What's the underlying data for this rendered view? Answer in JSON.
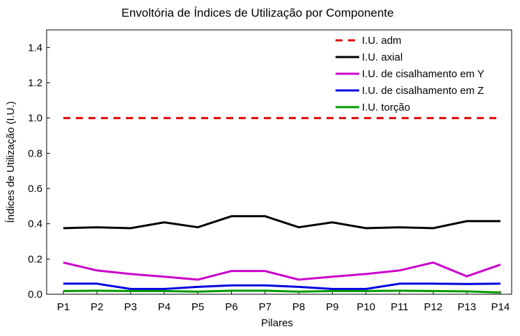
{
  "chart_data": {
    "type": "line",
    "title": "Envoltória de Índices de Utilização por Componente",
    "xlabel": "Pilares",
    "ylabel": "Índices de Utilização (I.U.)",
    "categories": [
      "P1",
      "P2",
      "P3",
      "P4",
      "P5",
      "P6",
      "P7",
      "P8",
      "P9",
      "P10",
      "P11",
      "P12",
      "P13",
      "P14"
    ],
    "ylim": [
      0,
      1.5
    ],
    "yticks": [
      "0.0",
      "0.2",
      "0.4",
      "0.6",
      "0.8",
      "1.0",
      "1.2",
      "1.4"
    ],
    "ytick_values": [
      0,
      0.2,
      0.4,
      0.6,
      0.8,
      1.0,
      1.2,
      1.4
    ],
    "legend_position": "top-right",
    "series": [
      {
        "name": "I.U. adm",
        "color": "#e00000",
        "dashed": true,
        "values": [
          1.0,
          1.0,
          1.0,
          1.0,
          1.0,
          1.0,
          1.0,
          1.0,
          1.0,
          1.0,
          1.0,
          1.0,
          1.0,
          1.0
        ]
      },
      {
        "name": "I.U. axial",
        "color": "#000000",
        "dashed": false,
        "values": [
          0.375,
          0.38,
          0.375,
          0.408,
          0.38,
          0.443,
          0.443,
          0.38,
          0.408,
          0.375,
          0.38,
          0.375,
          0.415,
          0.415
        ]
      },
      {
        "name": "I.U. de cisalhamento em Y",
        "color": "#cc00cc",
        "dashed": false,
        "values": [
          0.18,
          0.135,
          0.115,
          0.1,
          0.083,
          0.132,
          0.132,
          0.083,
          0.1,
          0.115,
          0.135,
          0.18,
          0.102,
          0.168
        ]
      },
      {
        "name": "I.U. de cisalhamento em Z",
        "color": "#0000e0",
        "dashed": false,
        "values": [
          0.06,
          0.06,
          0.03,
          0.03,
          0.042,
          0.05,
          0.05,
          0.042,
          0.03,
          0.03,
          0.06,
          0.06,
          0.058,
          0.06
        ]
      },
      {
        "name": "I.U. torção",
        "color": "#009900",
        "dashed": false,
        "values": [
          0.018,
          0.02,
          0.018,
          0.018,
          0.015,
          0.02,
          0.02,
          0.015,
          0.018,
          0.018,
          0.02,
          0.018,
          0.016,
          0.01
        ]
      }
    ]
  }
}
